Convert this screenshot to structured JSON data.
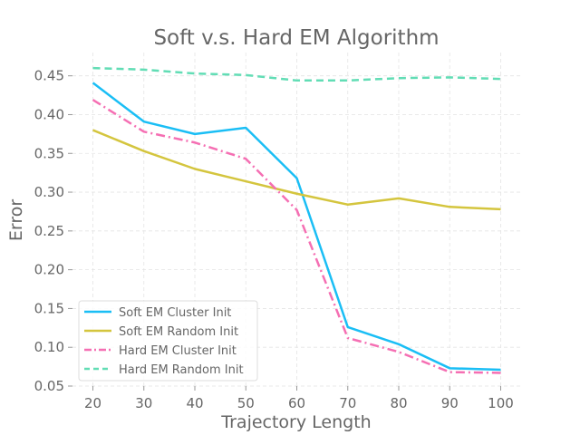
{
  "chart_data": {
    "type": "line",
    "title": "Soft v.s. Hard EM Algorithm",
    "xlabel": "Trajectory Length",
    "ylabel": "Error",
    "x": [
      20,
      30,
      40,
      50,
      60,
      70,
      80,
      90,
      100
    ],
    "xlim": [
      16,
      104
    ],
    "ylim": [
      0.05,
      0.48
    ],
    "xticks": [
      "20",
      "30",
      "40",
      "50",
      "60",
      "70",
      "80",
      "90",
      "100"
    ],
    "yticks": [
      "0.05",
      "0.10",
      "0.15",
      "0.20",
      "0.25",
      "0.30",
      "0.35",
      "0.40",
      "0.45"
    ],
    "grid": true,
    "legend_position": "lower-left",
    "series": [
      {
        "name": "Soft EM Cluster Init",
        "color": "#1ABEF5",
        "line_style": "solid",
        "values": [
          0.441,
          0.391,
          0.375,
          0.383,
          0.318,
          0.126,
          0.104,
          0.073,
          0.071
        ]
      },
      {
        "name": "Soft EM Random Init",
        "color": "#D4C53E",
        "line_style": "solid",
        "values": [
          0.38,
          0.353,
          0.33,
          0.314,
          0.298,
          0.284,
          0.292,
          0.281,
          0.278
        ]
      },
      {
        "name": "Hard EM Cluster Init",
        "color": "#F56FB3",
        "line_style": "dashdot",
        "values": [
          0.419,
          0.378,
          0.364,
          0.343,
          0.277,
          0.112,
          0.094,
          0.068,
          0.067
        ]
      },
      {
        "name": "Hard EM Random Init",
        "color": "#62DDB5",
        "line_style": "dashed",
        "values": [
          0.46,
          0.458,
          0.453,
          0.451,
          0.444,
          0.444,
          0.447,
          0.448,
          0.446
        ]
      }
    ]
  }
}
